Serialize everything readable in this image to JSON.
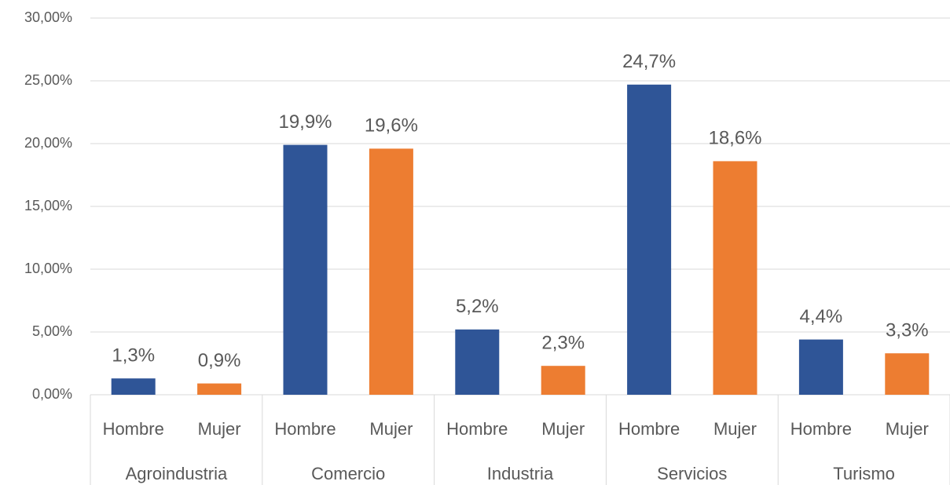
{
  "chart_data": {
    "type": "bar",
    "categories": [
      "Agroindustria",
      "Comercio",
      "Industria",
      "Servicios",
      "Turismo"
    ],
    "series": [
      {
        "name": "Hombre",
        "color": "#2f5597",
        "values": [
          1.3,
          19.9,
          5.2,
          24.7,
          4.4
        ],
        "value_labels": [
          "1,3%",
          "19,9%",
          "5,2%",
          "24,7%",
          "4,4%"
        ]
      },
      {
        "name": "Mujer",
        "color": "#ed7d31",
        "values": [
          0.9,
          19.6,
          2.3,
          18.6,
          3.3
        ],
        "value_labels": [
          "0,9%",
          "19,6%",
          "2,3%",
          "18,6%",
          "3,3%"
        ]
      }
    ],
    "ylim": [
      0,
      30
    ],
    "yticks": [
      {
        "value": 0,
        "label": "0,00%"
      },
      {
        "value": 5,
        "label": "5,00%"
      },
      {
        "value": 10,
        "label": "10,00%"
      },
      {
        "value": 15,
        "label": "15,00%"
      },
      {
        "value": 20,
        "label": "20,00%"
      },
      {
        "value": 25,
        "label": "25,00%"
      },
      {
        "value": 30,
        "label": "30,00%"
      }
    ],
    "grid": true
  }
}
